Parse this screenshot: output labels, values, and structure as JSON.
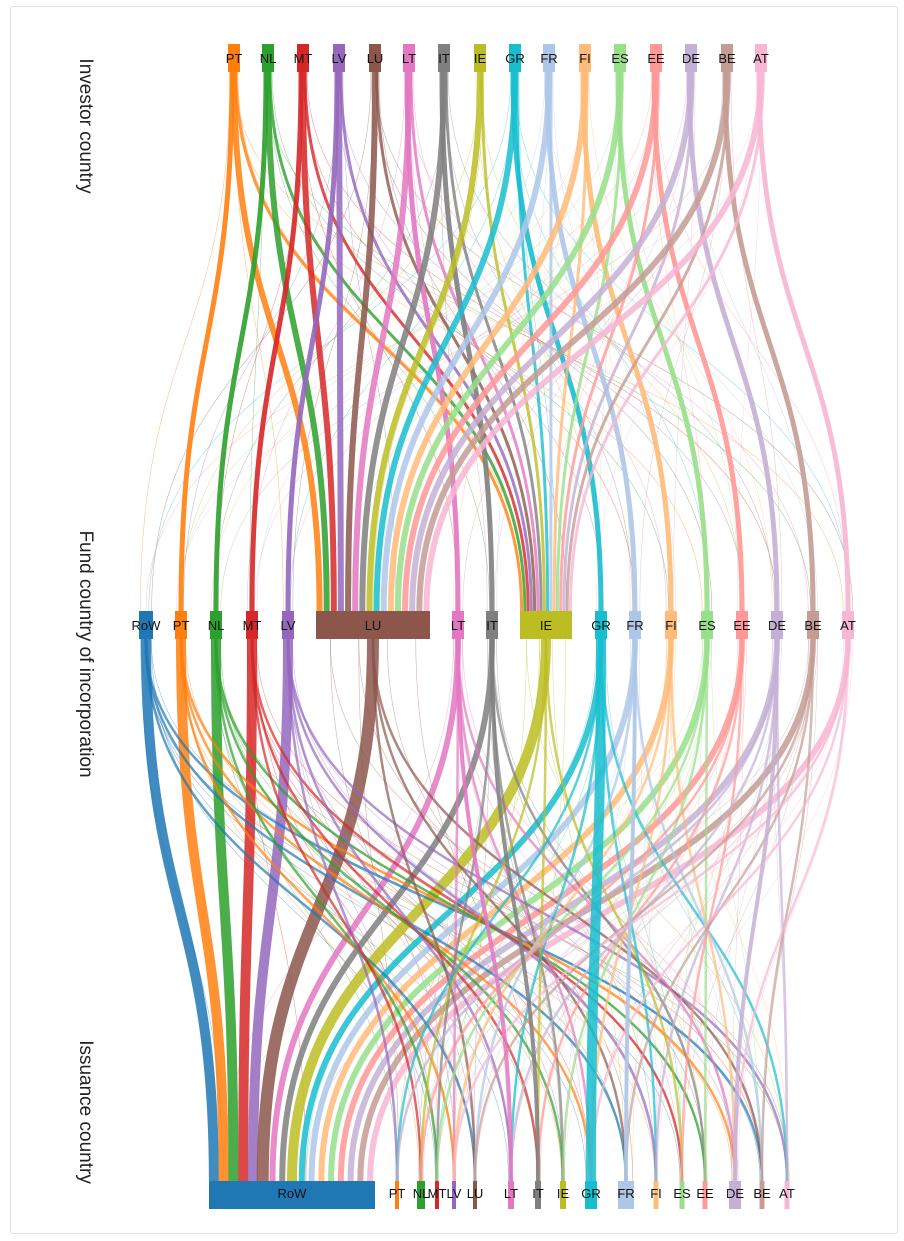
{
  "axis_titles": {
    "top": "Investor country",
    "middle": "Fund country of incorporation",
    "bottom": "Issuance country"
  },
  "colors": {
    "RoW": "#1f77b4",
    "PT": "#ff7f0e",
    "NL": "#2ca02c",
    "MT": "#d62728",
    "LV": "#9467bd",
    "LU": "#8c564b",
    "LT": "#e377c2",
    "IT": "#7f7f7f",
    "IE": "#bcbd22",
    "GR": "#17becf",
    "FR": "#aec7e8",
    "FI": "#ffbb78",
    "ES": "#98df8a",
    "EE": "#ff9896",
    "DE": "#c5b0d5",
    "BE": "#c49c94",
    "AT": "#f7b6d2"
  },
  "levels": {
    "investor": {
      "nodes": [
        {
          "id": "PT",
          "label": "PT"
        },
        {
          "id": "NL",
          "label": "NL"
        },
        {
          "id": "MT",
          "label": "MT"
        },
        {
          "id": "LV",
          "label": "LV"
        },
        {
          "id": "LU",
          "label": "LU"
        },
        {
          "id": "LT",
          "label": "LT"
        },
        {
          "id": "IT",
          "label": "IT"
        },
        {
          "id": "IE",
          "label": "IE"
        },
        {
          "id": "GR",
          "label": "GR"
        },
        {
          "id": "FR",
          "label": "FR"
        },
        {
          "id": "FI",
          "label": "FI"
        },
        {
          "id": "ES",
          "label": "ES"
        },
        {
          "id": "EE",
          "label": "EE"
        },
        {
          "id": "DE",
          "label": "DE"
        },
        {
          "id": "BE",
          "label": "BE"
        },
        {
          "id": "AT",
          "label": "AT"
        }
      ]
    },
    "fund": {
      "nodes": [
        {
          "id": "RoW",
          "label": "RoW"
        },
        {
          "id": "PT",
          "label": "PT"
        },
        {
          "id": "NL",
          "label": "NL"
        },
        {
          "id": "MT",
          "label": "MT"
        },
        {
          "id": "LV",
          "label": "LV"
        },
        {
          "id": "LU",
          "label": "LU"
        },
        {
          "id": "LT",
          "label": "LT"
        },
        {
          "id": "IT",
          "label": "IT"
        },
        {
          "id": "IE",
          "label": "IE"
        },
        {
          "id": "GR",
          "label": "GR"
        },
        {
          "id": "FR",
          "label": "FR"
        },
        {
          "id": "FI",
          "label": "FI"
        },
        {
          "id": "ES",
          "label": "ES"
        },
        {
          "id": "EE",
          "label": "EE"
        },
        {
          "id": "DE",
          "label": "DE"
        },
        {
          "id": "BE",
          "label": "BE"
        },
        {
          "id": "AT",
          "label": "AT"
        }
      ]
    },
    "issuance": {
      "nodes": [
        {
          "id": "RoW",
          "label": "RoW"
        },
        {
          "id": "PT",
          "label": "PT"
        },
        {
          "id": "NL",
          "label": "NL"
        },
        {
          "id": "MT",
          "label": "MT"
        },
        {
          "id": "LV",
          "label": "LV"
        },
        {
          "id": "LU",
          "label": "LU"
        },
        {
          "id": "LT",
          "label": "LT"
        },
        {
          "id": "IT",
          "label": "IT"
        },
        {
          "id": "IE",
          "label": "IE"
        },
        {
          "id": "GR",
          "label": "GR"
        },
        {
          "id": "FR",
          "label": "FR"
        },
        {
          "id": "FI",
          "label": "FI"
        },
        {
          "id": "ES",
          "label": "ES"
        },
        {
          "id": "EE",
          "label": "EE"
        },
        {
          "id": "DE",
          "label": "DE"
        },
        {
          "id": "BE",
          "label": "BE"
        },
        {
          "id": "AT",
          "label": "AT"
        }
      ]
    }
  }
}
